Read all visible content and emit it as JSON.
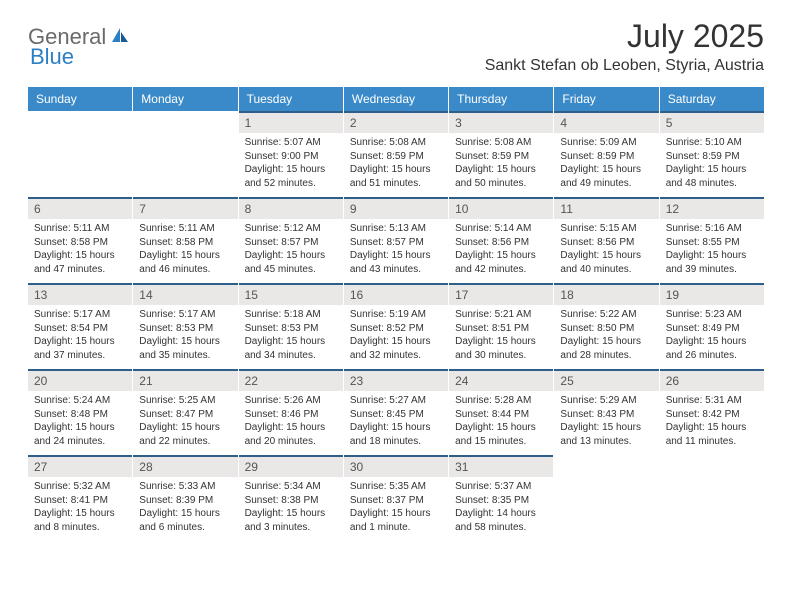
{
  "logo": {
    "part1": "General",
    "part2": "Blue"
  },
  "title": "July 2025",
  "location": "Sankt Stefan ob Leoben, Styria, Austria",
  "colors": {
    "header_bg": "#3a8ac9",
    "header_text": "#ffffff",
    "daynum_bg": "#e9e8e6",
    "daynum_border": "#2d5f8a",
    "body_text": "#333333",
    "logo_gray": "#6a6a6a",
    "logo_blue": "#2d7fc4"
  },
  "day_names": [
    "Sunday",
    "Monday",
    "Tuesday",
    "Wednesday",
    "Thursday",
    "Friday",
    "Saturday"
  ],
  "weeks": [
    [
      null,
      null,
      {
        "n": "1",
        "sr": "Sunrise: 5:07 AM",
        "ss": "Sunset: 9:00 PM",
        "d1": "Daylight: 15 hours",
        "d2": "and 52 minutes."
      },
      {
        "n": "2",
        "sr": "Sunrise: 5:08 AM",
        "ss": "Sunset: 8:59 PM",
        "d1": "Daylight: 15 hours",
        "d2": "and 51 minutes."
      },
      {
        "n": "3",
        "sr": "Sunrise: 5:08 AM",
        "ss": "Sunset: 8:59 PM",
        "d1": "Daylight: 15 hours",
        "d2": "and 50 minutes."
      },
      {
        "n": "4",
        "sr": "Sunrise: 5:09 AM",
        "ss": "Sunset: 8:59 PM",
        "d1": "Daylight: 15 hours",
        "d2": "and 49 minutes."
      },
      {
        "n": "5",
        "sr": "Sunrise: 5:10 AM",
        "ss": "Sunset: 8:59 PM",
        "d1": "Daylight: 15 hours",
        "d2": "and 48 minutes."
      }
    ],
    [
      {
        "n": "6",
        "sr": "Sunrise: 5:11 AM",
        "ss": "Sunset: 8:58 PM",
        "d1": "Daylight: 15 hours",
        "d2": "and 47 minutes."
      },
      {
        "n": "7",
        "sr": "Sunrise: 5:11 AM",
        "ss": "Sunset: 8:58 PM",
        "d1": "Daylight: 15 hours",
        "d2": "and 46 minutes."
      },
      {
        "n": "8",
        "sr": "Sunrise: 5:12 AM",
        "ss": "Sunset: 8:57 PM",
        "d1": "Daylight: 15 hours",
        "d2": "and 45 minutes."
      },
      {
        "n": "9",
        "sr": "Sunrise: 5:13 AM",
        "ss": "Sunset: 8:57 PM",
        "d1": "Daylight: 15 hours",
        "d2": "and 43 minutes."
      },
      {
        "n": "10",
        "sr": "Sunrise: 5:14 AM",
        "ss": "Sunset: 8:56 PM",
        "d1": "Daylight: 15 hours",
        "d2": "and 42 minutes."
      },
      {
        "n": "11",
        "sr": "Sunrise: 5:15 AM",
        "ss": "Sunset: 8:56 PM",
        "d1": "Daylight: 15 hours",
        "d2": "and 40 minutes."
      },
      {
        "n": "12",
        "sr": "Sunrise: 5:16 AM",
        "ss": "Sunset: 8:55 PM",
        "d1": "Daylight: 15 hours",
        "d2": "and 39 minutes."
      }
    ],
    [
      {
        "n": "13",
        "sr": "Sunrise: 5:17 AM",
        "ss": "Sunset: 8:54 PM",
        "d1": "Daylight: 15 hours",
        "d2": "and 37 minutes."
      },
      {
        "n": "14",
        "sr": "Sunrise: 5:17 AM",
        "ss": "Sunset: 8:53 PM",
        "d1": "Daylight: 15 hours",
        "d2": "and 35 minutes."
      },
      {
        "n": "15",
        "sr": "Sunrise: 5:18 AM",
        "ss": "Sunset: 8:53 PM",
        "d1": "Daylight: 15 hours",
        "d2": "and 34 minutes."
      },
      {
        "n": "16",
        "sr": "Sunrise: 5:19 AM",
        "ss": "Sunset: 8:52 PM",
        "d1": "Daylight: 15 hours",
        "d2": "and 32 minutes."
      },
      {
        "n": "17",
        "sr": "Sunrise: 5:21 AM",
        "ss": "Sunset: 8:51 PM",
        "d1": "Daylight: 15 hours",
        "d2": "and 30 minutes."
      },
      {
        "n": "18",
        "sr": "Sunrise: 5:22 AM",
        "ss": "Sunset: 8:50 PM",
        "d1": "Daylight: 15 hours",
        "d2": "and 28 minutes."
      },
      {
        "n": "19",
        "sr": "Sunrise: 5:23 AM",
        "ss": "Sunset: 8:49 PM",
        "d1": "Daylight: 15 hours",
        "d2": "and 26 minutes."
      }
    ],
    [
      {
        "n": "20",
        "sr": "Sunrise: 5:24 AM",
        "ss": "Sunset: 8:48 PM",
        "d1": "Daylight: 15 hours",
        "d2": "and 24 minutes."
      },
      {
        "n": "21",
        "sr": "Sunrise: 5:25 AM",
        "ss": "Sunset: 8:47 PM",
        "d1": "Daylight: 15 hours",
        "d2": "and 22 minutes."
      },
      {
        "n": "22",
        "sr": "Sunrise: 5:26 AM",
        "ss": "Sunset: 8:46 PM",
        "d1": "Daylight: 15 hours",
        "d2": "and 20 minutes."
      },
      {
        "n": "23",
        "sr": "Sunrise: 5:27 AM",
        "ss": "Sunset: 8:45 PM",
        "d1": "Daylight: 15 hours",
        "d2": "and 18 minutes."
      },
      {
        "n": "24",
        "sr": "Sunrise: 5:28 AM",
        "ss": "Sunset: 8:44 PM",
        "d1": "Daylight: 15 hours",
        "d2": "and 15 minutes."
      },
      {
        "n": "25",
        "sr": "Sunrise: 5:29 AM",
        "ss": "Sunset: 8:43 PM",
        "d1": "Daylight: 15 hours",
        "d2": "and 13 minutes."
      },
      {
        "n": "26",
        "sr": "Sunrise: 5:31 AM",
        "ss": "Sunset: 8:42 PM",
        "d1": "Daylight: 15 hours",
        "d2": "and 11 minutes."
      }
    ],
    [
      {
        "n": "27",
        "sr": "Sunrise: 5:32 AM",
        "ss": "Sunset: 8:41 PM",
        "d1": "Daylight: 15 hours",
        "d2": "and 8 minutes."
      },
      {
        "n": "28",
        "sr": "Sunrise: 5:33 AM",
        "ss": "Sunset: 8:39 PM",
        "d1": "Daylight: 15 hours",
        "d2": "and 6 minutes."
      },
      {
        "n": "29",
        "sr": "Sunrise: 5:34 AM",
        "ss": "Sunset: 8:38 PM",
        "d1": "Daylight: 15 hours",
        "d2": "and 3 minutes."
      },
      {
        "n": "30",
        "sr": "Sunrise: 5:35 AM",
        "ss": "Sunset: 8:37 PM",
        "d1": "Daylight: 15 hours",
        "d2": "and 1 minute."
      },
      {
        "n": "31",
        "sr": "Sunrise: 5:37 AM",
        "ss": "Sunset: 8:35 PM",
        "d1": "Daylight: 14 hours",
        "d2": "and 58 minutes."
      },
      null,
      null
    ]
  ]
}
